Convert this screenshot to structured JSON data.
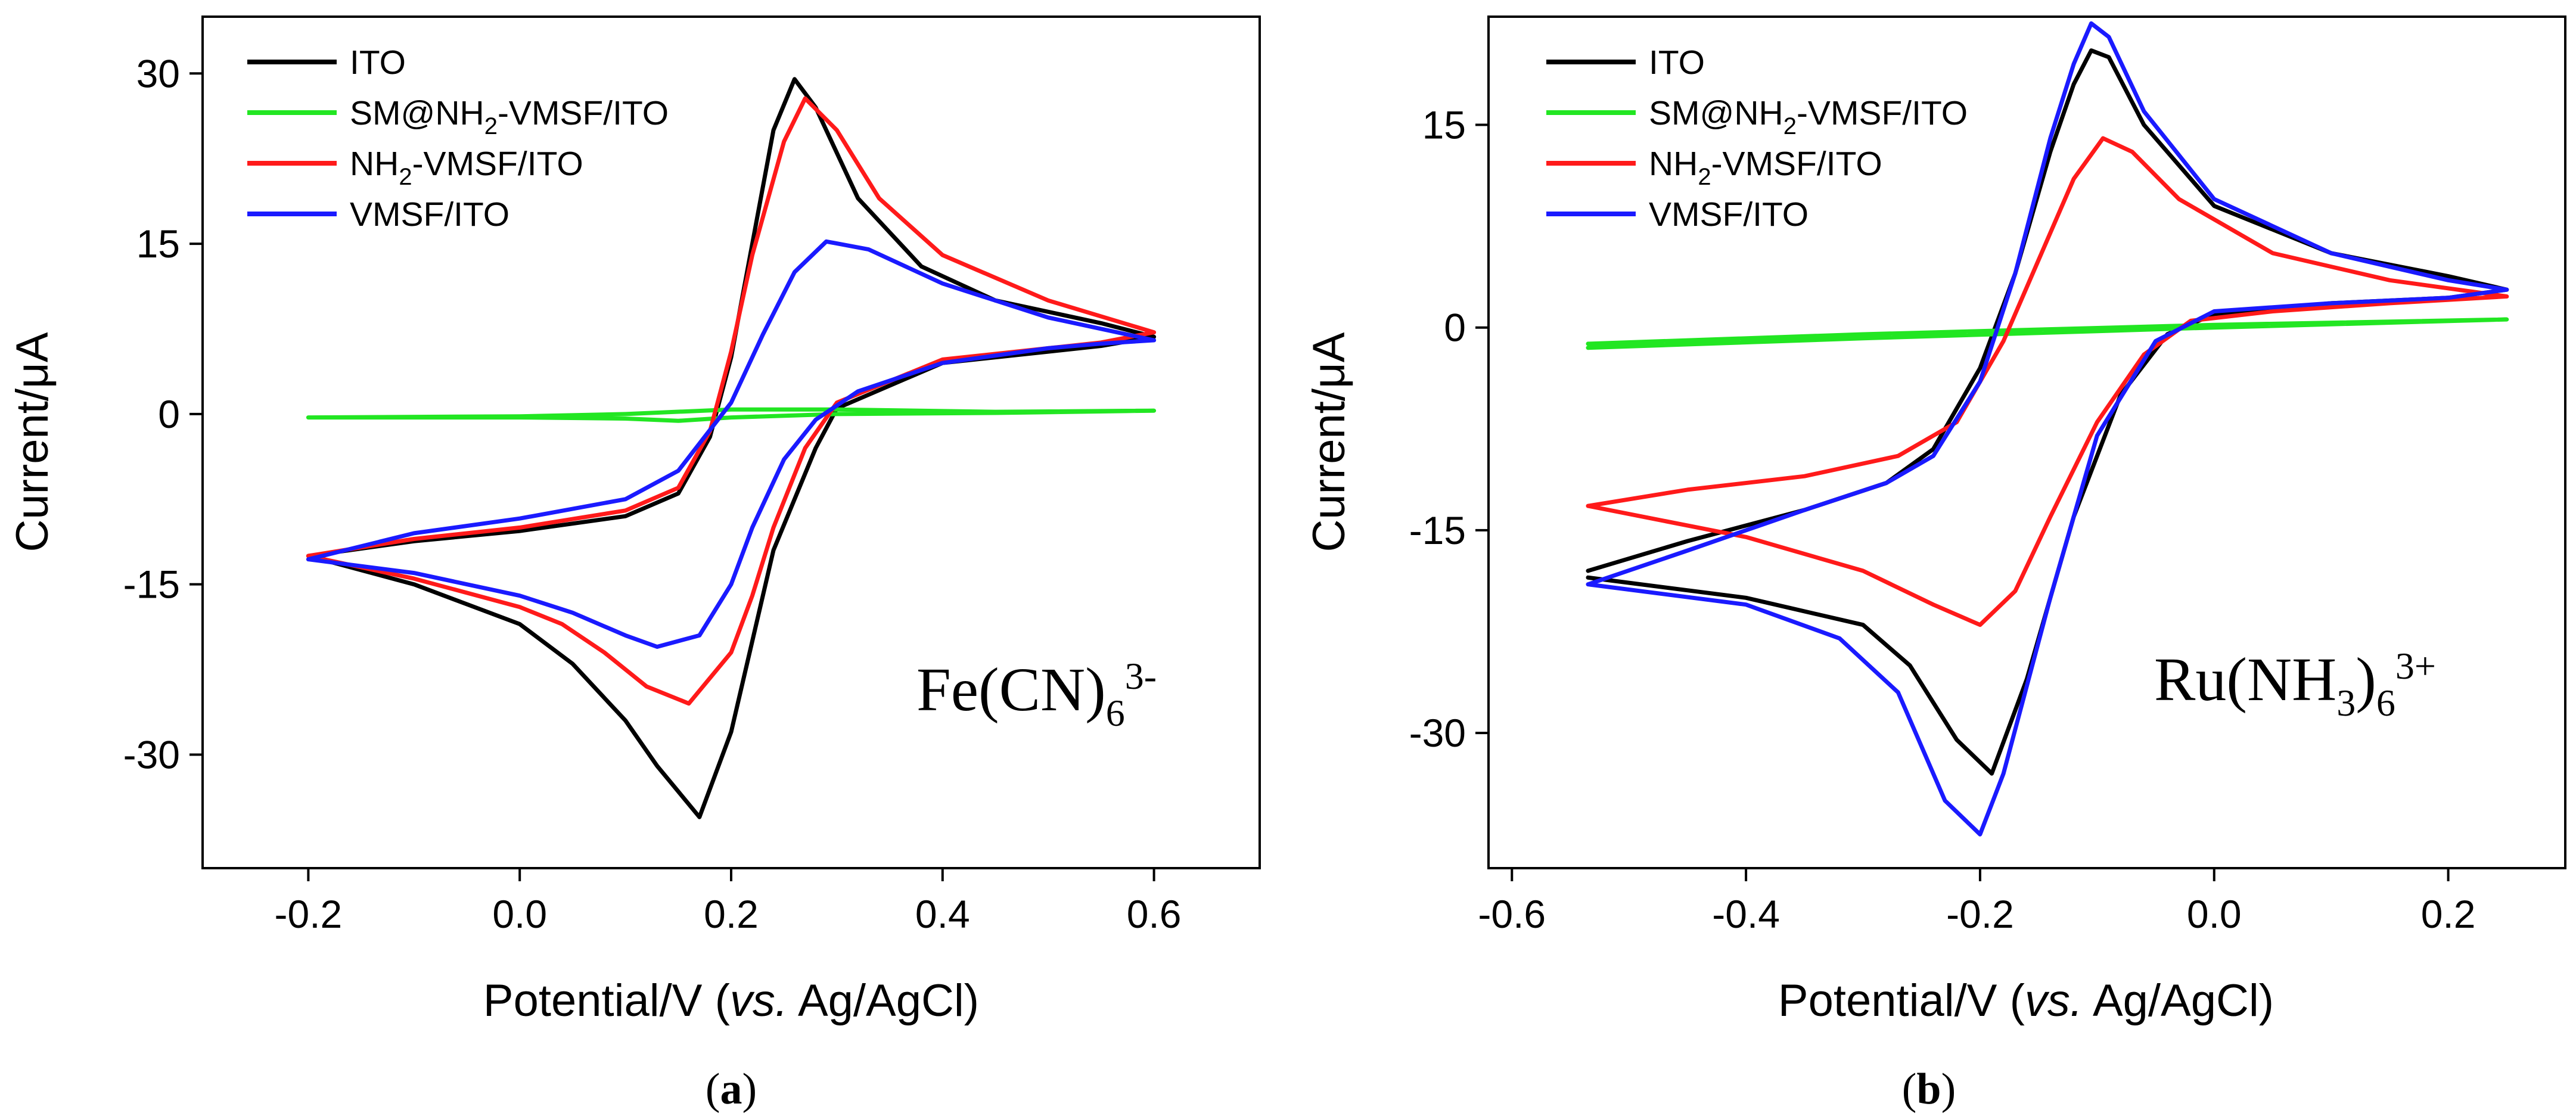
{
  "chart_data": [
    {
      "type": "line",
      "panel_label": [
        "(",
        "a",
        ")"
      ],
      "annotation": {
        "base": "Fe(CN)",
        "sub": "6",
        "sup": "3-"
      },
      "xlabel_parts": [
        "Potential/V (",
        "vs.",
        " Ag/AgCl)"
      ],
      "ylabel": "Current/μA",
      "xlim": [
        -0.3,
        0.7
      ],
      "ylim": [
        -40,
        35
      ],
      "xticks": [
        -0.2,
        0.0,
        0.2,
        0.4,
        0.6
      ],
      "xtick_labels": [
        "-0.2",
        "0.0",
        "0.2",
        "0.4",
        "0.6"
      ],
      "yticks": [
        -30,
        -15,
        0,
        15,
        30
      ],
      "ytick_labels": [
        "-30",
        "-15",
        "0",
        "15",
        "30"
      ],
      "legend_position": "top-left",
      "series": [
        {
          "name": "ITO",
          "legend_parts": [
            "ITO"
          ],
          "color": "#000000",
          "points": [
            [
              -0.2,
              -12.5
            ],
            [
              -0.1,
              -11.2
            ],
            [
              0.0,
              -10.3
            ],
            [
              0.1,
              -9.0
            ],
            [
              0.15,
              -7.0
            ],
            [
              0.18,
              -2.0
            ],
            [
              0.2,
              5.0
            ],
            [
              0.22,
              15.0
            ],
            [
              0.24,
              25.0
            ],
            [
              0.26,
              29.5
            ],
            [
              0.28,
              27.0
            ],
            [
              0.32,
              19.0
            ],
            [
              0.38,
              13.0
            ],
            [
              0.45,
              10.0
            ],
            [
              0.55,
              8.0
            ],
            [
              0.6,
              6.8
            ],
            [
              0.55,
              6.0
            ],
            [
              0.5,
              5.5
            ],
            [
              0.4,
              4.5
            ],
            [
              0.3,
              0.5
            ],
            [
              0.28,
              -3.0
            ],
            [
              0.24,
              -12.0
            ],
            [
              0.22,
              -20.0
            ],
            [
              0.2,
              -28.0
            ],
            [
              0.17,
              -35.5
            ],
            [
              0.13,
              -31.0
            ],
            [
              0.1,
              -27.0
            ],
            [
              0.05,
              -22.0
            ],
            [
              0.0,
              -18.5
            ],
            [
              -0.1,
              -15.0
            ],
            [
              -0.2,
              -12.5
            ]
          ]
        },
        {
          "name": "SM@NH2-VMSF/ITO",
          "legend_parts": [
            "SM@NH",
            "2",
            "-VMSF/ITO"
          ],
          "color": "#22e622",
          "points": [
            [
              -0.2,
              -0.3
            ],
            [
              0.0,
              -0.2
            ],
            [
              0.1,
              0.0
            ],
            [
              0.2,
              0.4
            ],
            [
              0.3,
              0.4
            ],
            [
              0.45,
              0.2
            ],
            [
              0.6,
              0.3
            ],
            [
              0.45,
              0.1
            ],
            [
              0.3,
              0.0
            ],
            [
              0.2,
              -0.3
            ],
            [
              0.15,
              -0.6
            ],
            [
              0.1,
              -0.4
            ],
            [
              0.0,
              -0.3
            ],
            [
              -0.2,
              -0.3
            ]
          ]
        },
        {
          "name": "NH2-VMSF/ITO",
          "legend_parts": [
            "NH",
            "2",
            "-VMSF/ITO"
          ],
          "color": "#ff1a1a",
          "points": [
            [
              -0.2,
              -12.5
            ],
            [
              -0.1,
              -11.0
            ],
            [
              0.0,
              -10.0
            ],
            [
              0.1,
              -8.5
            ],
            [
              0.15,
              -6.5
            ],
            [
              0.18,
              -1.5
            ],
            [
              0.2,
              5.5
            ],
            [
              0.22,
              14.0
            ],
            [
              0.25,
              24.0
            ],
            [
              0.27,
              27.8
            ],
            [
              0.3,
              25.0
            ],
            [
              0.34,
              19.0
            ],
            [
              0.4,
              14.0
            ],
            [
              0.5,
              10.0
            ],
            [
              0.6,
              7.2
            ],
            [
              0.55,
              6.3
            ],
            [
              0.5,
              5.8
            ],
            [
              0.4,
              4.8
            ],
            [
              0.3,
              1.0
            ],
            [
              0.27,
              -3.0
            ],
            [
              0.24,
              -10.0
            ],
            [
              0.22,
              -16.0
            ],
            [
              0.2,
              -21.0
            ],
            [
              0.16,
              -25.5
            ],
            [
              0.12,
              -24.0
            ],
            [
              0.08,
              -21.0
            ],
            [
              0.04,
              -18.5
            ],
            [
              0.0,
              -17.0
            ],
            [
              -0.1,
              -14.5
            ],
            [
              -0.2,
              -12.5
            ]
          ]
        },
        {
          "name": "VMSF/ITO",
          "legend_parts": [
            "VMSF/ITO"
          ],
          "color": "#1a1aff",
          "points": [
            [
              -0.2,
              -12.8
            ],
            [
              -0.1,
              -10.5
            ],
            [
              0.0,
              -9.2
            ],
            [
              0.1,
              -7.5
            ],
            [
              0.15,
              -5.0
            ],
            [
              0.2,
              1.0
            ],
            [
              0.23,
              7.0
            ],
            [
              0.26,
              12.5
            ],
            [
              0.29,
              15.2
            ],
            [
              0.33,
              14.5
            ],
            [
              0.4,
              11.5
            ],
            [
              0.5,
              8.5
            ],
            [
              0.6,
              6.5
            ],
            [
              0.55,
              6.2
            ],
            [
              0.5,
              5.8
            ],
            [
              0.4,
              4.5
            ],
            [
              0.32,
              2.0
            ],
            [
              0.28,
              -0.5
            ],
            [
              0.25,
              -4.0
            ],
            [
              0.22,
              -10.0
            ],
            [
              0.2,
              -15.0
            ],
            [
              0.17,
              -19.5
            ],
            [
              0.13,
              -20.5
            ],
            [
              0.1,
              -19.5
            ],
            [
              0.05,
              -17.5
            ],
            [
              0.0,
              -16.0
            ],
            [
              -0.1,
              -14.0
            ],
            [
              -0.2,
              -12.8
            ]
          ]
        }
      ]
    },
    {
      "type": "line",
      "panel_label": [
        "(",
        "b",
        ")"
      ],
      "annotation": {
        "base": "Ru(NH",
        "sub1": "3",
        "mid": ")",
        "sub": "6",
        "sup": "3+"
      },
      "xlabel_parts": [
        "Potential/V (",
        "vs.",
        " Ag/AgCl)"
      ],
      "ylabel": "Current/μA",
      "xlim": [
        -0.62,
        0.3
      ],
      "ylim": [
        -40,
        23
      ],
      "xticks": [
        -0.6,
        -0.4,
        -0.2,
        0.0,
        0.2
      ],
      "xtick_labels": [
        "-0.6",
        "-0.4",
        "-0.2",
        "0.0",
        "0.2"
      ],
      "yticks": [
        -30,
        -15,
        0,
        15
      ],
      "ytick_labels": [
        "-30",
        "-15",
        "0",
        "15"
      ],
      "legend_position": "top-left",
      "series": [
        {
          "name": "ITO",
          "legend_parts": [
            "ITO"
          ],
          "color": "#000000",
          "points": [
            [
              -0.535,
              -18.0
            ],
            [
              -0.45,
              -15.8
            ],
            [
              -0.35,
              -13.5
            ],
            [
              -0.28,
              -11.5
            ],
            [
              -0.24,
              -9.0
            ],
            [
              -0.2,
              -3.0
            ],
            [
              -0.17,
              4.0
            ],
            [
              -0.14,
              13.0
            ],
            [
              -0.12,
              18.0
            ],
            [
              -0.105,
              20.5
            ],
            [
              -0.09,
              20.0
            ],
            [
              -0.06,
              15.0
            ],
            [
              0.0,
              9.0
            ],
            [
              0.1,
              5.5
            ],
            [
              0.2,
              3.8
            ],
            [
              0.25,
              2.8
            ],
            [
              0.2,
              2.2
            ],
            [
              0.1,
              1.8
            ],
            [
              0.0,
              1.0
            ],
            [
              -0.04,
              -0.5
            ],
            [
              -0.08,
              -5.0
            ],
            [
              -0.12,
              -14.0
            ],
            [
              -0.16,
              -26.0
            ],
            [
              -0.19,
              -33.0
            ],
            [
              -0.22,
              -30.5
            ],
            [
              -0.26,
              -25.0
            ],
            [
              -0.3,
              -22.0
            ],
            [
              -0.4,
              -20.0
            ],
            [
              -0.535,
              -18.5
            ]
          ]
        },
        {
          "name": "SM@NH2-VMSF/ITO",
          "legend_parts": [
            "SM@NH",
            "2",
            "-VMSF/ITO"
          ],
          "color": "#22e622",
          "points": [
            [
              -0.535,
              -1.5
            ],
            [
              -0.3,
              -0.8
            ],
            [
              0.0,
              0.0
            ],
            [
              0.25,
              0.6
            ],
            [
              0.0,
              0.2
            ],
            [
              -0.3,
              -0.5
            ],
            [
              -0.535,
              -1.2
            ]
          ]
        },
        {
          "name": "NH2-VMSF/ITO",
          "legend_parts": [
            "NH",
            "2",
            "-VMSF/ITO"
          ],
          "color": "#ff1a1a",
          "points": [
            [
              -0.535,
              -13.2
            ],
            [
              -0.45,
              -12.0
            ],
            [
              -0.35,
              -11.0
            ],
            [
              -0.27,
              -9.5
            ],
            [
              -0.22,
              -7.0
            ],
            [
              -0.18,
              -1.0
            ],
            [
              -0.15,
              5.0
            ],
            [
              -0.12,
              11.0
            ],
            [
              -0.095,
              14.0
            ],
            [
              -0.07,
              13.0
            ],
            [
              -0.03,
              9.5
            ],
            [
              0.05,
              5.5
            ],
            [
              0.15,
              3.5
            ],
            [
              0.25,
              2.3
            ],
            [
              0.15,
              1.8
            ],
            [
              0.05,
              1.2
            ],
            [
              -0.02,
              0.5
            ],
            [
              -0.06,
              -2.0
            ],
            [
              -0.1,
              -7.0
            ],
            [
              -0.14,
              -14.0
            ],
            [
              -0.17,
              -19.5
            ],
            [
              -0.2,
              -22.0
            ],
            [
              -0.24,
              -20.5
            ],
            [
              -0.3,
              -18.0
            ],
            [
              -0.4,
              -15.5
            ],
            [
              -0.535,
              -13.2
            ]
          ]
        },
        {
          "name": "VMSF/ITO",
          "legend_parts": [
            "VMSF/ITO"
          ],
          "color": "#1a1aff",
          "points": [
            [
              -0.535,
              -19.0
            ],
            [
              -0.45,
              -16.5
            ],
            [
              -0.35,
              -13.5
            ],
            [
              -0.28,
              -11.5
            ],
            [
              -0.24,
              -9.5
            ],
            [
              -0.2,
              -4.0
            ],
            [
              -0.17,
              4.0
            ],
            [
              -0.14,
              14.0
            ],
            [
              -0.12,
              19.5
            ],
            [
              -0.105,
              22.5
            ],
            [
              -0.09,
              21.5
            ],
            [
              -0.06,
              16.0
            ],
            [
              0.0,
              9.5
            ],
            [
              0.1,
              5.5
            ],
            [
              0.2,
              3.5
            ],
            [
              0.25,
              2.8
            ],
            [
              0.2,
              2.2
            ],
            [
              0.1,
              1.8
            ],
            [
              0.0,
              1.2
            ],
            [
              -0.05,
              -1.0
            ],
            [
              -0.1,
              -8.0
            ],
            [
              -0.14,
              -20.0
            ],
            [
              -0.18,
              -33.0
            ],
            [
              -0.2,
              -37.5
            ],
            [
              -0.23,
              -35.0
            ],
            [
              -0.27,
              -27.0
            ],
            [
              -0.32,
              -23.0
            ],
            [
              -0.4,
              -20.5
            ],
            [
              -0.535,
              -19.0
            ]
          ]
        }
      ]
    }
  ]
}
